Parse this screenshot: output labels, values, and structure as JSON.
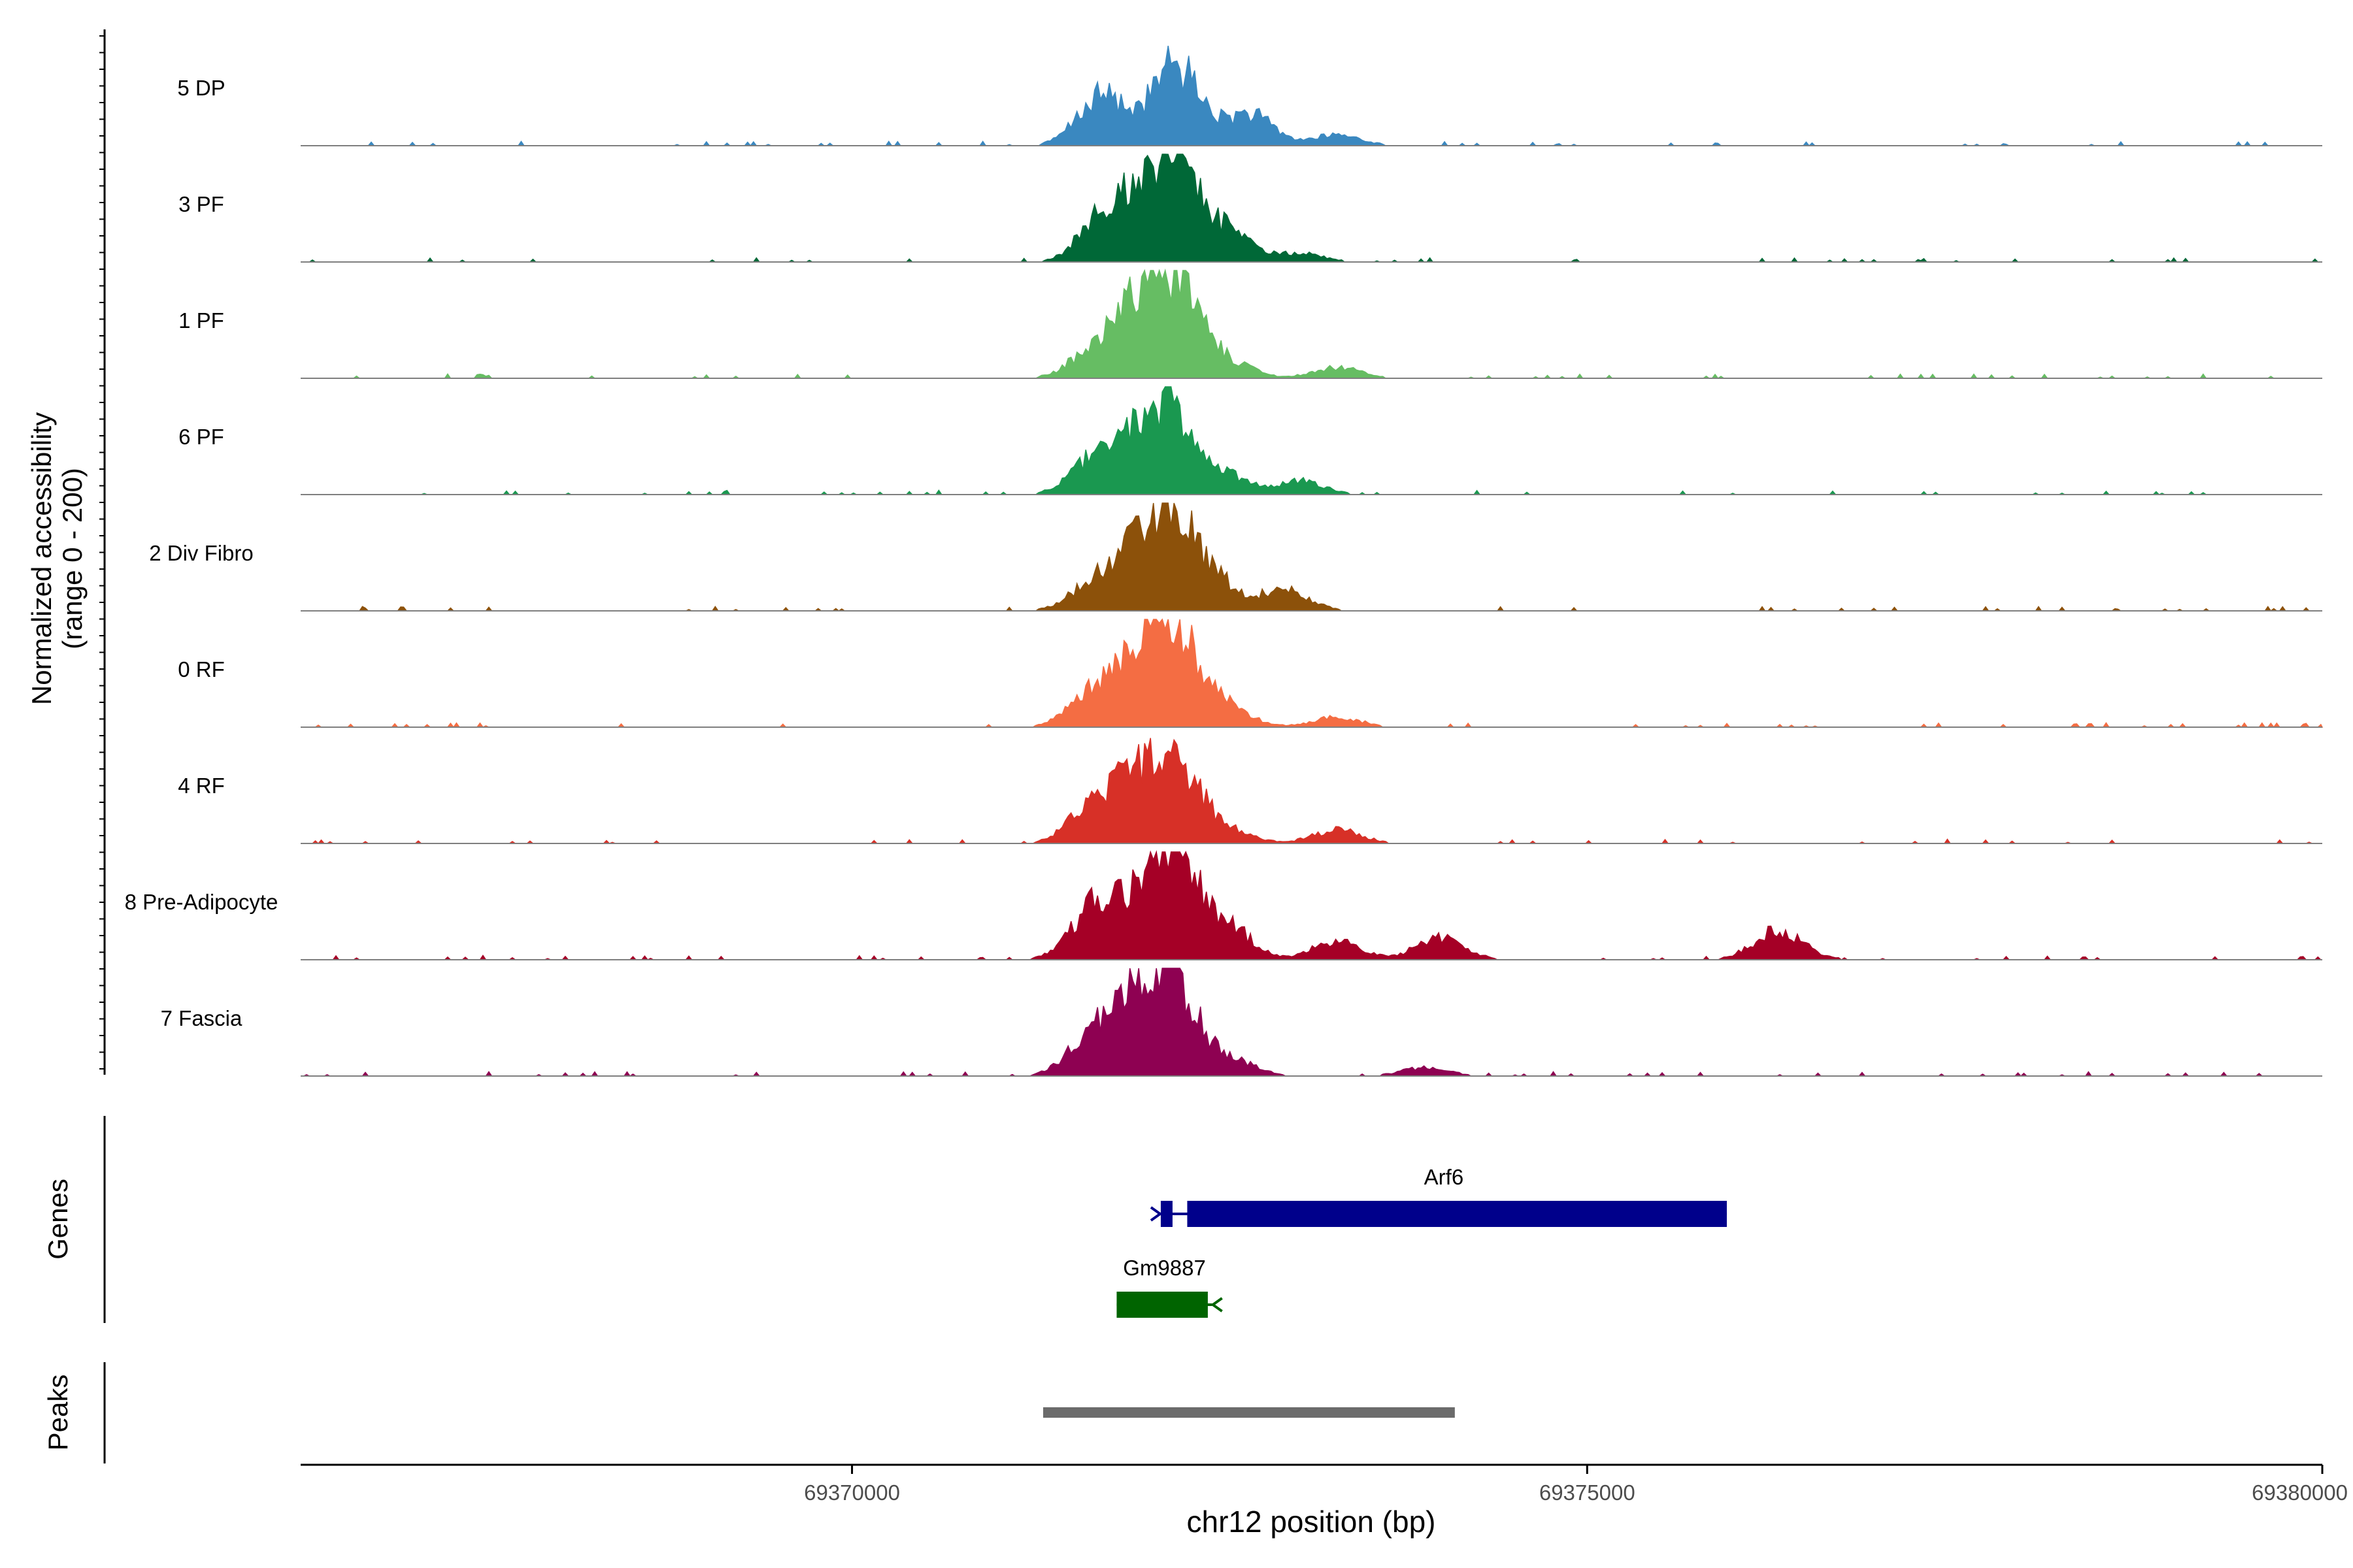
{
  "chart_data": {
    "type": "area",
    "title": "",
    "region": {
      "chrom": "chr12",
      "start": 69366250,
      "end": 69380000
    },
    "xlabel": "chr12 position (bp)",
    "x_ticks": [
      69370000,
      69375000,
      69380000
    ],
    "x_tick_labels": [
      "69370000",
      "69375000",
      "69380000"
    ],
    "ylabel_line1": "Normalized accessibility",
    "ylabel_line2": "(range 0 - 200)",
    "ylim": [
      0,
      200
    ],
    "genes_label": "Genes",
    "peaks_label": "Peaks",
    "tracks": [
      {
        "name": "5 DP",
        "color": "#3a88c0",
        "peaks": [
          [
            69371700,
            92
          ],
          [
            69372200,
            150
          ],
          [
            69372700,
            58
          ],
          [
            69373300,
            20
          ]
        ],
        "base": [
          0,
          0,
          0,
          0,
          0,
          0,
          0,
          0
        ],
        "scale": 1.0
      },
      {
        "name": "3 PF",
        "color": "#006837",
        "peaks": [
          [
            69371700,
            70
          ],
          [
            69371950,
            82
          ],
          [
            69372200,
            170
          ],
          [
            69372550,
            50
          ],
          [
            69373050,
            16
          ]
        ],
        "base": [
          0,
          0,
          0,
          0,
          0,
          0,
          0,
          0
        ],
        "scale": 1.0
      },
      {
        "name": "1 PF",
        "color": "#66bd63",
        "peaks": [
          [
            69371650,
            50
          ],
          [
            69371950,
            110
          ],
          [
            69372200,
            160
          ],
          [
            69372550,
            30
          ],
          [
            69373300,
            20
          ]
        ],
        "base": [
          0,
          0,
          0,
          0,
          0,
          0,
          0,
          0
        ],
        "scale": 1.0
      },
      {
        "name": "6 PF",
        "color": "#1a9850",
        "peaks": [
          [
            69371650,
            60
          ],
          [
            69371950,
            100
          ],
          [
            69372200,
            130
          ],
          [
            69372550,
            30
          ],
          [
            69373050,
            25
          ]
        ],
        "base": [
          0,
          0,
          0,
          0,
          0,
          0,
          0,
          0
        ],
        "scale": 1.0
      },
      {
        "name": "2 Div Fibro",
        "color": "#8c510a",
        "peaks": [
          [
            69371650,
            50
          ],
          [
            69371950,
            95
          ],
          [
            69372200,
            160
          ],
          [
            69372500,
            40
          ],
          [
            69372950,
            38
          ]
        ],
        "base": [
          0,
          0,
          0,
          0,
          0,
          0,
          0,
          0
        ],
        "scale": 1.0
      },
      {
        "name": "0 RF",
        "color": "#f46d43",
        "peaks": [
          [
            69371650,
            65
          ],
          [
            69371950,
            105
          ],
          [
            69372200,
            170
          ],
          [
            69372550,
            35
          ],
          [
            69373300,
            18
          ]
        ],
        "base": [
          0,
          0,
          0,
          0,
          0,
          0,
          0,
          0
        ],
        "scale": 1.0
      },
      {
        "name": "4 RF",
        "color": "#d73027",
        "peaks": [
          [
            69371650,
            70
          ],
          [
            69371950,
            95
          ],
          [
            69372200,
            140
          ],
          [
            69372550,
            25
          ],
          [
            69373300,
            25
          ]
        ],
        "base": [
          0,
          0,
          0,
          0,
          0,
          0,
          0,
          0
        ],
        "scale": 1.0
      },
      {
        "name": "8 Pre-Adipocyte",
        "color": "#a50026",
        "peaks": [
          [
            69371650,
            95
          ],
          [
            69371950,
            70
          ],
          [
            69372200,
            180
          ],
          [
            69372550,
            60
          ],
          [
            69373300,
            35
          ],
          [
            69374000,
            40
          ],
          [
            69376300,
            55
          ]
        ],
        "base": [
          0,
          0,
          0,
          0,
          0,
          0,
          0,
          0
        ],
        "scale": 1.0
      },
      {
        "name": "7 Fascia",
        "color": "#8e0152",
        "peaks": [
          [
            69371650,
            85
          ],
          [
            69371950,
            110
          ],
          [
            69372200,
            160
          ],
          [
            69372600,
            25
          ],
          [
            69373900,
            15
          ]
        ],
        "base": [
          0,
          0,
          0,
          0,
          0,
          0,
          0,
          0
        ],
        "scale": 1.0
      }
    ],
    "genes": [
      {
        "name": "Arf6",
        "strand": "+",
        "color": "#00008b",
        "start": 69372100,
        "end": 69375950,
        "exons": [
          [
            69372100,
            69372180
          ],
          [
            69372280,
            69375950
          ]
        ]
      },
      {
        "name": "Gm9887",
        "strand": "-",
        "color": "#006400",
        "start": 69371800,
        "end": 69372450,
        "exons": [
          [
            69371800,
            69372420
          ]
        ]
      }
    ],
    "peaks": [
      {
        "start": 69371300,
        "end": 69374100,
        "color": "#6b6b6b"
      }
    ]
  }
}
